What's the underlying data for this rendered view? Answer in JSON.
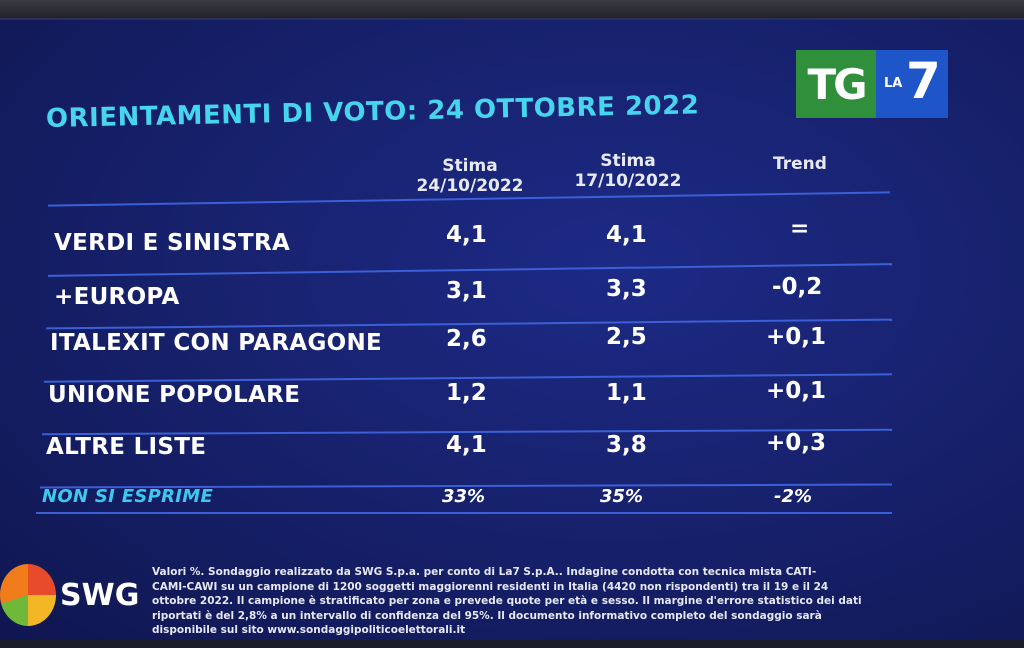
{
  "logo": {
    "tg": "TG",
    "la": "LA",
    "seven": "7"
  },
  "title": "ORIENTAMENTI DI VOTO: 24 OTTOBRE 2022",
  "columns": [
    {
      "line1": "Stima",
      "line2": "24/10/2022"
    },
    {
      "line1": "Stima",
      "line2": "17/10/2022"
    },
    {
      "line1": "Trend",
      "line2": ""
    }
  ],
  "rows": [
    {
      "label": "VERDI E SINISTRA",
      "current": "4,1",
      "previous": "4,1",
      "trend": "="
    },
    {
      "label": "+EUROPA",
      "current": "3,1",
      "previous": "3,3",
      "trend": "-0,2"
    },
    {
      "label": "ITALEXIT CON PARAGONE",
      "current": "2,6",
      "previous": "2,5",
      "trend": "+0,1"
    },
    {
      "label": "UNIONE POPOLARE",
      "current": "1,2",
      "previous": "1,1",
      "trend": "+0,1"
    },
    {
      "label": "ALTRE LISTE",
      "current": "4,1",
      "previous": "3,8",
      "trend": "+0,3"
    },
    {
      "label": "NON SI ESPRIME",
      "current": "33%",
      "previous": "35%",
      "trend": "-2%"
    }
  ],
  "brand": {
    "name": "SWG"
  },
  "footnote": [
    "Valori %. Sondaggio realizzato da SWG S.p.a. per conto di La7 S.p.A.. Indagine condotta con tecnica mista CATI-",
    "CAMI-CAWI su un campione di 1200 soggetti maggiorenni residenti in Italia (4420 non rispondenti) tra il 19 e il 24",
    "ottobre 2022. Il campione è stratificato per zona e prevede quote per età e sesso. Il margine d'errore statistico dei dati",
    "riportati è del 2,8% a un intervallo di confidenza del 95%. Il documento informativo completo del sondaggio sarà",
    "disponibile sul sito www.sondaggipoliticoelettorali.it"
  ]
}
